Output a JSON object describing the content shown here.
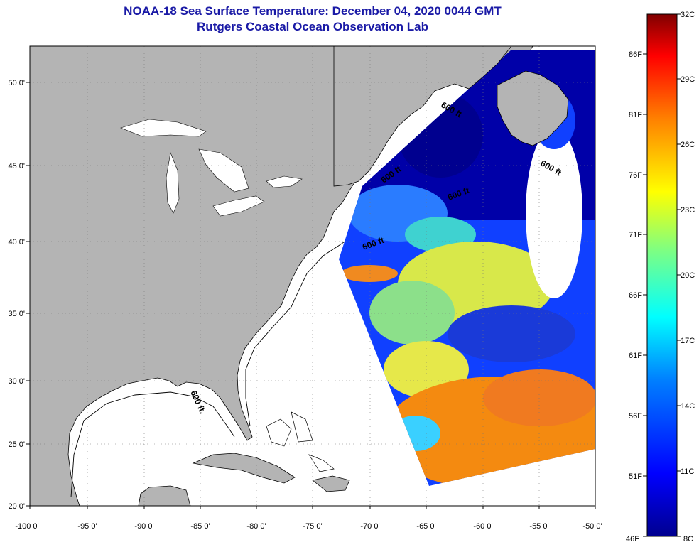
{
  "title": {
    "line1": "NOAA-18 Sea Surface Temperature:  December 04, 2020 0044 GMT",
    "line2": "Rutgers Coastal Ocean Observation Lab"
  },
  "map": {
    "lon_ticks": [
      "-100 0'",
      "-95 0'",
      "-90 0'",
      "-85 0'",
      "-80 0'",
      "-75 0'",
      "-70 0'",
      "-65 0'",
      "-60 0'",
      "-55 0'",
      "-50 0'"
    ],
    "lat_ticks": [
      "50 0'",
      "45 0'",
      "40 0'",
      "35 0'",
      "30 0'",
      "25 0'",
      "20 0'"
    ],
    "contour_labels": [
      "600 ft",
      "600 ft",
      "600 ft",
      "600 ft",
      "600 ft",
      "600 ft."
    ],
    "colors": {
      "land": "#b4b4b4",
      "ocean": "#ffffff",
      "cold": "#00008f",
      "warm": "#ff8a00"
    }
  },
  "colorbar": {
    "celsius": [
      "32C",
      "29C",
      "26C",
      "23C",
      "20C",
      "17C",
      "14C",
      "11C",
      "8C"
    ],
    "fahrenheit": [
      "86F",
      "81F",
      "76F",
      "71F",
      "66F",
      "61F",
      "56F",
      "51F",
      "46F"
    ],
    "gradient": [
      "#00008f",
      "#0000ff",
      "#0080ff",
      "#00ffff",
      "#80ff80",
      "#ffff00",
      "#ff8000",
      "#ff0000",
      "#800000"
    ]
  }
}
